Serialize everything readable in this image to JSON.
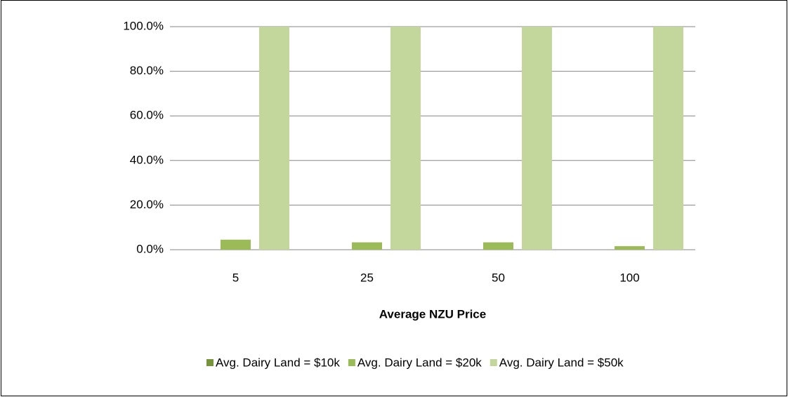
{
  "chart_data": {
    "type": "bar",
    "x_label": "Average NZU Price",
    "categories": [
      "5",
      "25",
      "50",
      "100"
    ],
    "series": [
      {
        "name": "Avg. Dairy Land = $10k",
        "color": "#77933c",
        "values": [
          0,
          0,
          0,
          0
        ]
      },
      {
        "name": "Avg. Dairy Land = $20k",
        "color": "#9bbb59",
        "values": [
          4.5,
          3.3,
          3.3,
          1.6
        ]
      },
      {
        "name": "Avg. Dairy Land = $50k",
        "color": "#c3d69b",
        "values": [
          100,
          100,
          100,
          100
        ]
      }
    ],
    "ylim": [
      0,
      100
    ],
    "yticks": [
      {
        "value": 0,
        "label": "0.0%"
      },
      {
        "value": 20,
        "label": "20.0%"
      },
      {
        "value": 40,
        "label": "40.0%"
      },
      {
        "value": 60,
        "label": "60.0%"
      },
      {
        "value": 80,
        "label": "80.0%"
      },
      {
        "value": 100,
        "label": "100.0%"
      }
    ],
    "grid": true,
    "legend": "bottom"
  }
}
